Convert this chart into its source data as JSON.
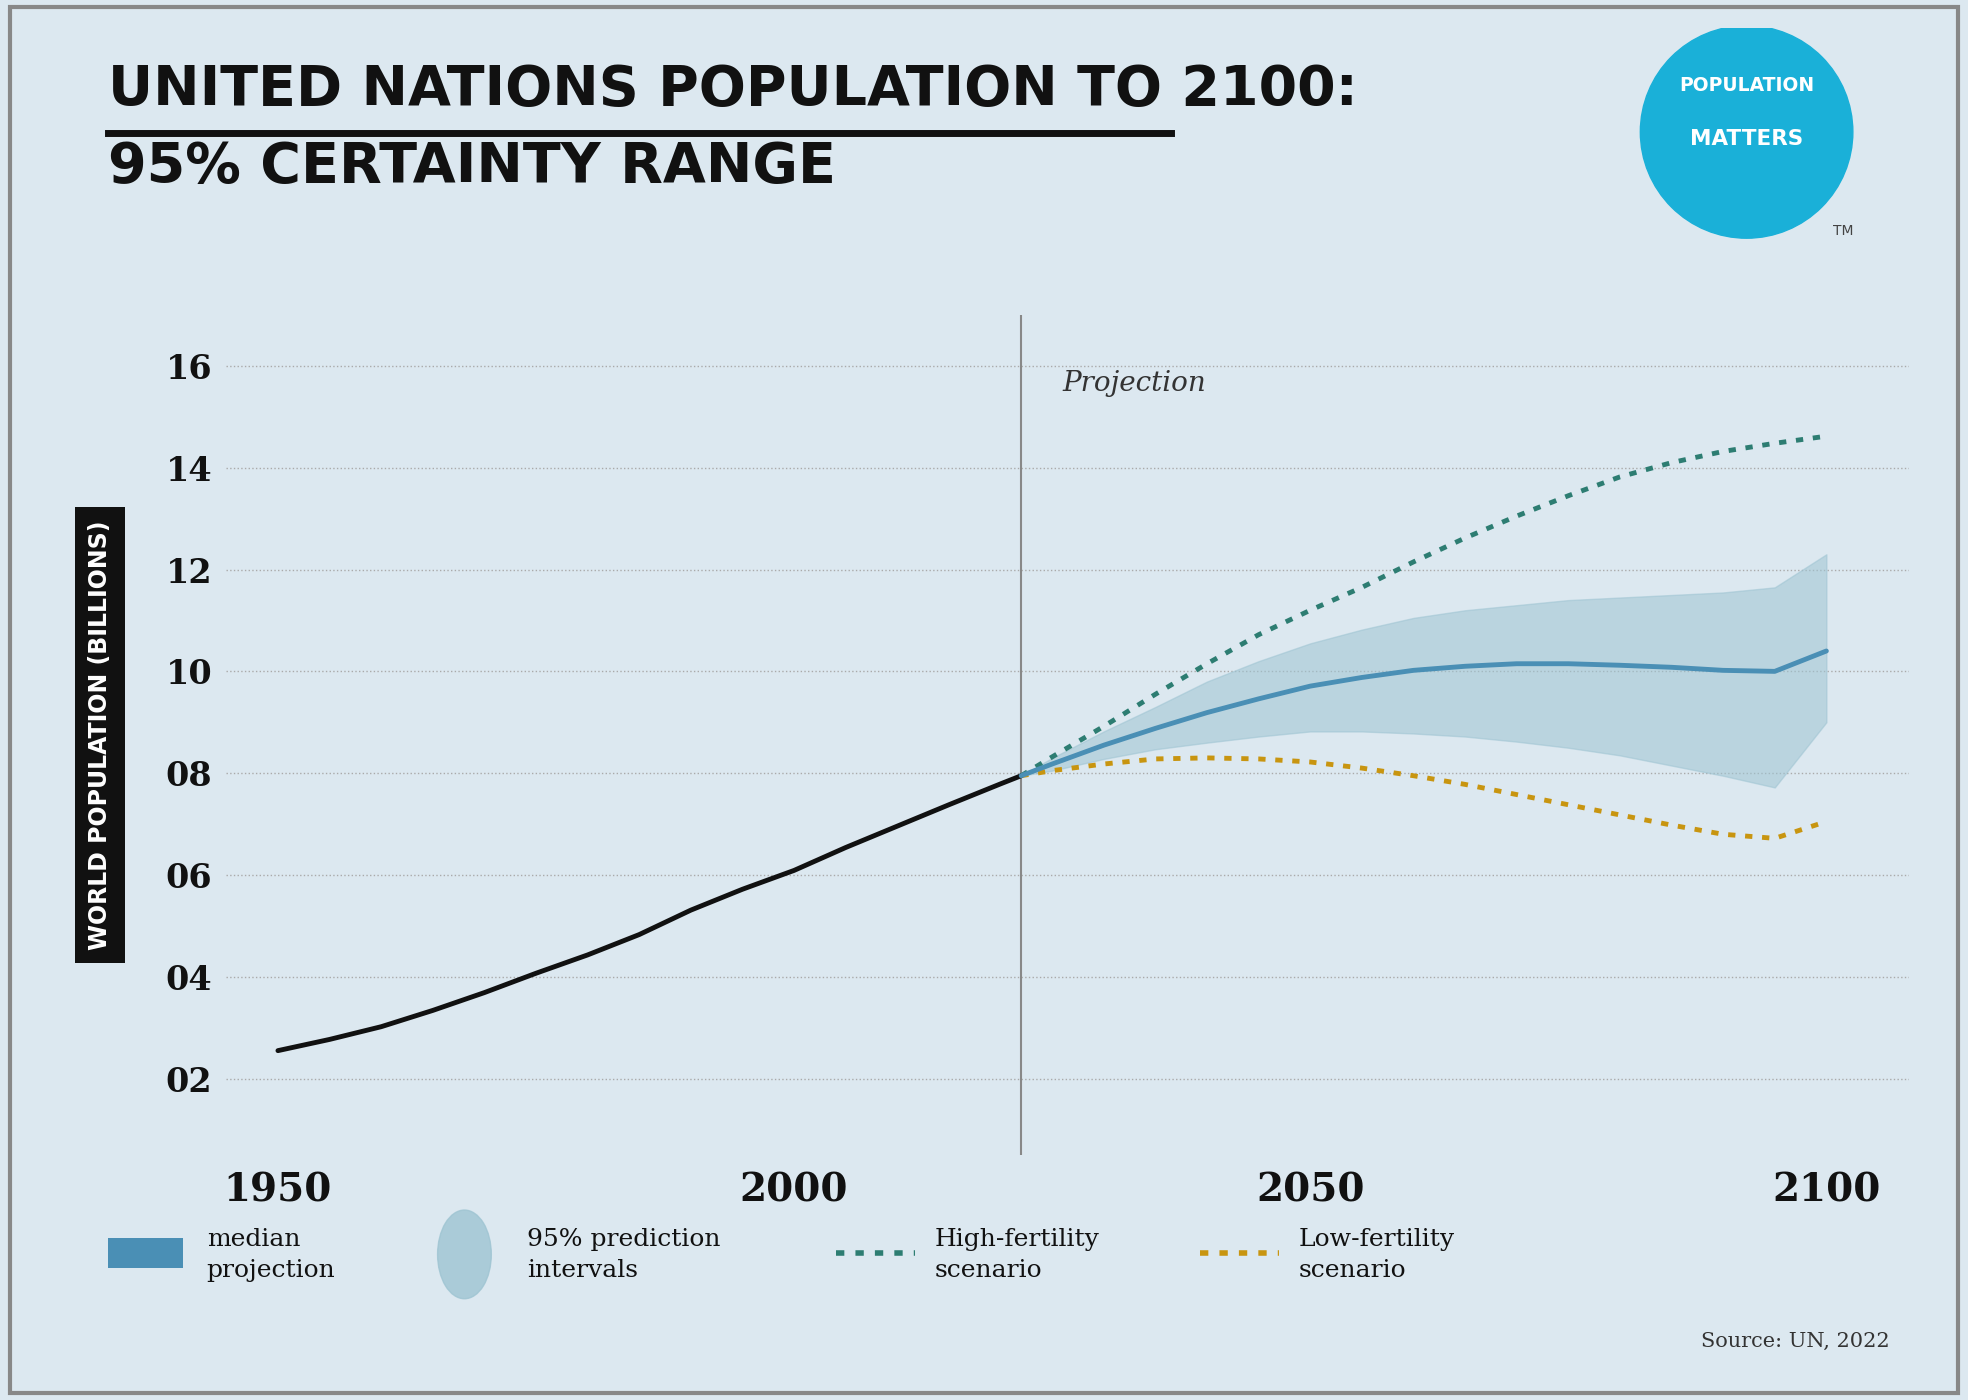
{
  "title_line1": "UNITED NATIONS POPULATION TO 2100:",
  "title_line2": "95% CERTAINTY RANGE",
  "ylabel": "WORLD POPULATION (BILLIONS)",
  "background_color": "#dce8f0",
  "title_color": "#111111",
  "projection_label": "Projection",
  "projection_year": 2022,
  "source_text": "Source: UN, 2022",
  "xlim": [
    1945,
    2108
  ],
  "ylim": [
    0.5,
    17
  ],
  "yticks": [
    2,
    4,
    6,
    8,
    10,
    12,
    14,
    16
  ],
  "ytick_labels": [
    "02",
    "04",
    "06",
    "08",
    "10",
    "12",
    "14",
    "16"
  ],
  "xticks": [
    1950,
    2000,
    2050,
    2100
  ],
  "historical_years": [
    1950,
    1955,
    1960,
    1965,
    1970,
    1975,
    1980,
    1985,
    1990,
    1995,
    2000,
    2005,
    2010,
    2015,
    2020,
    2022
  ],
  "historical_pop": [
    2.55,
    2.77,
    3.02,
    3.34,
    3.69,
    4.07,
    4.43,
    4.83,
    5.31,
    5.72,
    6.09,
    6.54,
    6.96,
    7.38,
    7.79,
    7.95
  ],
  "median_years": [
    2022,
    2025,
    2030,
    2035,
    2040,
    2045,
    2050,
    2055,
    2060,
    2065,
    2070,
    2075,
    2080,
    2085,
    2090,
    2095,
    2100
  ],
  "median_pop": [
    7.95,
    8.18,
    8.55,
    8.88,
    9.19,
    9.46,
    9.71,
    9.88,
    10.02,
    10.1,
    10.15,
    10.15,
    10.12,
    10.08,
    10.02,
    10.0,
    10.4
  ],
  "upper_95": [
    7.95,
    8.3,
    8.82,
    9.3,
    9.8,
    10.2,
    10.55,
    10.82,
    11.05,
    11.2,
    11.3,
    11.4,
    11.45,
    11.5,
    11.55,
    11.65,
    12.3
  ],
  "lower_95": [
    7.95,
    8.05,
    8.28,
    8.47,
    8.6,
    8.72,
    8.82,
    8.82,
    8.78,
    8.72,
    8.62,
    8.5,
    8.35,
    8.15,
    7.95,
    7.72,
    9.0
  ],
  "high_fertility_years": [
    2022,
    2025,
    2030,
    2035,
    2040,
    2045,
    2050,
    2055,
    2060,
    2065,
    2070,
    2075,
    2080,
    2085,
    2090,
    2095,
    2100
  ],
  "high_fertility_pop": [
    7.95,
    8.32,
    8.92,
    9.55,
    10.15,
    10.72,
    11.2,
    11.65,
    12.15,
    12.62,
    13.05,
    13.45,
    13.82,
    14.1,
    14.32,
    14.48,
    14.62
  ],
  "low_fertility_years": [
    2022,
    2025,
    2030,
    2035,
    2040,
    2045,
    2050,
    2055,
    2060,
    2065,
    2070,
    2075,
    2080,
    2085,
    2090,
    2095,
    2100
  ],
  "low_fertility_pop": [
    7.95,
    8.05,
    8.18,
    8.28,
    8.3,
    8.28,
    8.22,
    8.1,
    7.95,
    7.78,
    7.58,
    7.38,
    7.18,
    6.98,
    6.8,
    6.72,
    7.05
  ],
  "median_color": "#4a8fb5",
  "prediction_interval_color": "#9ec4d2",
  "high_fertility_color": "#2d7d72",
  "low_fertility_color": "#c89510",
  "historical_color": "#111111",
  "grid_color": "#aaaaaa",
  "logo_bg_color": "#1ab0d8",
  "ylabel_box_color": "#111111",
  "ylabel_text_color": "#ffffff"
}
